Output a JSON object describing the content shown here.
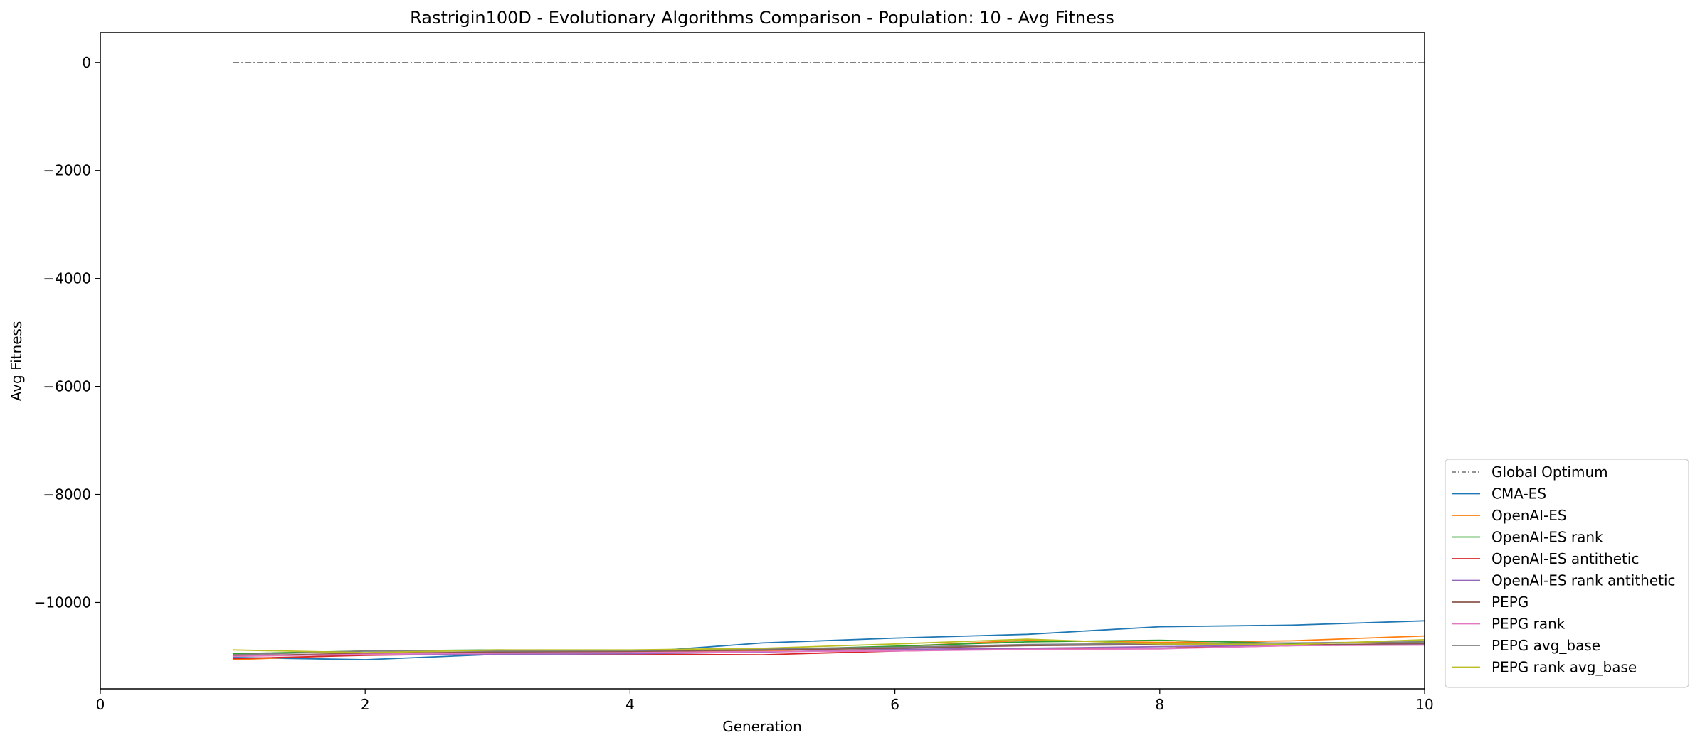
{
  "chart_data": {
    "type": "line",
    "title": "Rastrigin100D - Evolutionary Algorithms Comparison - Population: 10 - Avg Fitness",
    "xlabel": "Generation",
    "ylabel": "Avg Fitness",
    "xlim": [
      0,
      10
    ],
    "ylim": [
      -11600,
      550
    ],
    "xticks": [
      0,
      2,
      4,
      6,
      8,
      10
    ],
    "yticks": [
      0,
      -2000,
      -4000,
      -6000,
      -8000,
      -10000
    ],
    "xtick_labels": [
      "0",
      "2",
      "4",
      "6",
      "8",
      "10"
    ],
    "ytick_labels": [
      "0",
      "−2000",
      "−4000",
      "−6000",
      "−8000",
      "−10000"
    ],
    "grid": false,
    "legend_position": "lower-right-outside",
    "x": [
      1,
      2,
      3,
      4,
      5,
      6,
      7,
      8,
      9,
      10
    ],
    "series": [
      {
        "name": "Global Optimum",
        "color": "#555555",
        "dash": "dashdot",
        "values": [
          0,
          0,
          0,
          0,
          0,
          0,
          0,
          0,
          0,
          0
        ]
      },
      {
        "name": "CMA-ES",
        "color": "#1f77b4",
        "values": [
          -11020,
          -11060,
          -10960,
          -10930,
          -10750,
          -10660,
          -10590,
          -10450,
          -10420,
          -10340
        ]
      },
      {
        "name": "OpenAI-ES",
        "color": "#ff7f0e",
        "values": [
          -11060,
          -10970,
          -10920,
          -10910,
          -10900,
          -10820,
          -10700,
          -10740,
          -10710,
          -10620
        ]
      },
      {
        "name": "OpenAI-ES rank",
        "color": "#2ca02c",
        "values": [
          -10950,
          -10900,
          -10880,
          -10900,
          -10880,
          -10810,
          -10730,
          -10700,
          -10760,
          -10730
        ]
      },
      {
        "name": "OpenAI-ES antithetic",
        "color": "#d62728",
        "values": [
          -11040,
          -10980,
          -10950,
          -10960,
          -10970,
          -10900,
          -10860,
          -10850,
          -10800,
          -10780
        ]
      },
      {
        "name": "OpenAI-ES rank antithetic",
        "color": "#9467bd",
        "values": [
          -10980,
          -10970,
          -10960,
          -10950,
          -10920,
          -10870,
          -10850,
          -10820,
          -10790,
          -10780
        ]
      },
      {
        "name": "PEPG",
        "color": "#8c564b",
        "values": [
          -10990,
          -10940,
          -10920,
          -10910,
          -10880,
          -10850,
          -10800,
          -10780,
          -10790,
          -10760
        ]
      },
      {
        "name": "PEPG rank",
        "color": "#e377c2",
        "values": [
          -11000,
          -10960,
          -10940,
          -10930,
          -10910,
          -10900,
          -10870,
          -10860,
          -10800,
          -10790
        ]
      },
      {
        "name": "PEPG avg_base",
        "color": "#7f7f7f",
        "values": [
          -10970,
          -10900,
          -10900,
          -10890,
          -10860,
          -10830,
          -10780,
          -10760,
          -10750,
          -10730
        ]
      },
      {
        "name": "PEPG rank avg_base",
        "color": "#bcbd22",
        "values": [
          -10880,
          -10930,
          -10880,
          -10880,
          -10850,
          -10770,
          -10680,
          -10770,
          -10780,
          -10690
        ]
      }
    ]
  }
}
